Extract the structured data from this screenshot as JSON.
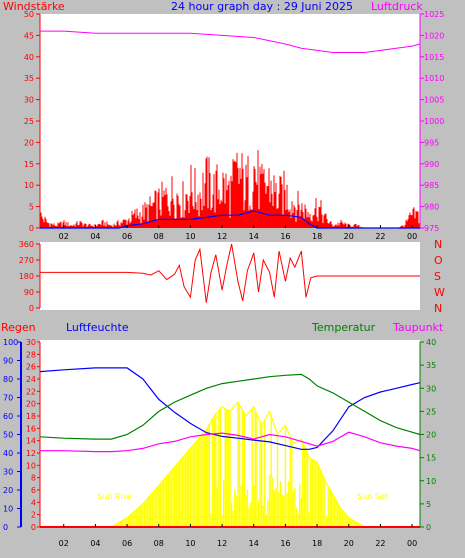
{
  "colors": {
    "background": "#c0c0c0",
    "plot_bg": "#ffffff",
    "grid": "#000000",
    "wind": "#ff0000",
    "wind_avg": "#0000ff",
    "pressure": "#ff00ff",
    "direction": "#ff0000",
    "humidity": "#0000ff",
    "temperature": "#008000",
    "dewpoint": "#ff00ff",
    "solar": "#ffff00",
    "rain": "#ff0000",
    "title": "#0000ff"
  },
  "chart_data": [
    {
      "type": "line",
      "title": "24 hour graph day : 29 Juni 2025",
      "left_axis_label": "Windstärke",
      "right_axis_label": "Luftdruck",
      "x_ticks": [
        "02",
        "04",
        "06",
        "08",
        "10",
        "12",
        "14",
        "16",
        "18",
        "20",
        "22",
        "00"
      ],
      "left_ticks": [
        "0",
        "5",
        "10",
        "15",
        "20",
        "25",
        "30",
        "35",
        "40",
        "45",
        "50"
      ],
      "right_ticks": [
        "975",
        "980",
        "985",
        "990",
        "995",
        "1000",
        "1005",
        "1010",
        "1015",
        "1020",
        "1025"
      ],
      "ylim_left": [
        0,
        50
      ],
      "ylim_right": [
        975,
        1025
      ],
      "xlim_hours": [
        0.5,
        24.5
      ],
      "series": [
        {
          "name": "Windstärke",
          "axis": "left",
          "style": "spikes",
          "x": [
            0.5,
            1,
            1.5,
            2,
            2.5,
            3,
            3.5,
            4,
            4.5,
            5,
            5.5,
            6,
            6.5,
            7,
            7.5,
            8,
            8.5,
            9,
            9.5,
            10,
            10.5,
            11,
            11.5,
            12,
            12.5,
            13,
            13.5,
            14,
            14.5,
            15,
            15.5,
            16,
            16.5,
            17,
            17.5,
            18,
            18.5,
            19,
            19.5,
            20,
            20.5,
            21,
            21.5,
            22,
            22.5,
            23,
            23.5,
            24
          ],
          "values": [
            5,
            2,
            1,
            2,
            1,
            2,
            1,
            1,
            2,
            1,
            2,
            3,
            5,
            6,
            8,
            10,
            12,
            14,
            11,
            16,
            13,
            18,
            15,
            17,
            14,
            22,
            16,
            24,
            15,
            18,
            12,
            14,
            10,
            8,
            6,
            9,
            4,
            1,
            2,
            1,
            1,
            0,
            0,
            0,
            0,
            0,
            1,
            5
          ]
        },
        {
          "name": "Windstärke avg",
          "axis": "left",
          "x": [
            0.5,
            2,
            4,
            5.5,
            6,
            7,
            8,
            9,
            10,
            11,
            12,
            13,
            14,
            15,
            16,
            17,
            17.5,
            18,
            20,
            22,
            24,
            24.5
          ],
          "values": [
            0,
            0,
            0,
            0,
            0.5,
            1,
            2,
            2,
            2,
            2.5,
            3,
            3,
            4,
            3,
            3,
            2.5,
            1,
            0,
            0,
            0,
            0,
            0
          ]
        },
        {
          "name": "Luftdruck",
          "axis": "right",
          "x": [
            0.5,
            2,
            4,
            6,
            8,
            10,
            12,
            14,
            16,
            17,
            18,
            19,
            20,
            21,
            22,
            23,
            24,
            24.5
          ],
          "values": [
            1021,
            1021,
            1020.5,
            1020.5,
            1020.5,
            1020.5,
            1020,
            1019.5,
            1018,
            1017,
            1016.5,
            1016,
            1016,
            1016,
            1016.5,
            1017,
            1017.5,
            1018
          ]
        }
      ]
    },
    {
      "type": "line",
      "left_ticks": [
        "0",
        "90",
        "180",
        "270",
        "360"
      ],
      "ylim": [
        0,
        360
      ],
      "direction_labels": [
        "N",
        "W",
        "S",
        "O",
        "N"
      ],
      "series": [
        {
          "name": "Windrichtung",
          "x": [
            0.5,
            2,
            4,
            6,
            7,
            7.5,
            8,
            8.5,
            9,
            9.3,
            9.6,
            10,
            10.3,
            10.6,
            11,
            11.3,
            11.6,
            12,
            12.3,
            12.6,
            13,
            13.3,
            13.6,
            14,
            14.3,
            14.6,
            15,
            15.3,
            15.6,
            16,
            16.3,
            16.6,
            17,
            17.3,
            17.6,
            18,
            18.5,
            20,
            22,
            24,
            24.5
          ],
          "values": [
            200,
            200,
            200,
            200,
            195,
            185,
            210,
            160,
            190,
            240,
            120,
            60,
            270,
            330,
            30,
            200,
            300,
            100,
            240,
            360,
            150,
            40,
            210,
            310,
            90,
            270,
            200,
            60,
            320,
            150,
            280,
            230,
            320,
            60,
            170,
            180,
            180,
            180,
            180,
            180,
            180
          ]
        }
      ]
    },
    {
      "type": "line",
      "left_axis_label": "Regen",
      "humidity_label": "Luftfeuchte",
      "temperature_label": "Temperatur",
      "dewpoint_label": "Taupunkt",
      "rain_ticks": [
        "0",
        "10",
        "20",
        "30",
        "40",
        "50",
        "60",
        "70",
        "80",
        "90",
        "100"
      ],
      "humidity_ticks": [
        "0",
        "2",
        "4",
        "6",
        "8",
        "10",
        "12",
        "14",
        "16",
        "18",
        "20",
        "22",
        "24",
        "26",
        "28",
        "30"
      ],
      "temp_ticks": [
        "0",
        "5",
        "10",
        "15",
        "20",
        "25",
        "30",
        "35",
        "40"
      ],
      "x_ticks": [
        "02",
        "04",
        "06",
        "08",
        "10",
        "12",
        "14",
        "16",
        "18",
        "20",
        "22",
        "00"
      ],
      "ylim_rain": [
        0,
        100
      ],
      "ylim_temp": [
        0,
        40
      ],
      "annotations": [
        {
          "text": "Sun Rise",
          "hour": 5.2
        },
        {
          "text": "Sun Set",
          "hour": 21.5
        }
      ],
      "series": [
        {
          "name": "Luftfeuchte",
          "axis": "rain",
          "x": [
            0.5,
            2,
            4,
            5,
            6,
            7,
            8,
            9,
            10,
            11,
            12,
            13,
            14,
            15,
            16,
            17,
            17.5,
            18,
            19,
            20,
            21,
            22,
            23,
            24,
            24.5
          ],
          "values": [
            84,
            85,
            86,
            86,
            86,
            80,
            69,
            62,
            56,
            51,
            49,
            48,
            47,
            46,
            44,
            42,
            42,
            43,
            52,
            65,
            70,
            73,
            75,
            77,
            78
          ]
        },
        {
          "name": "Temperatur",
          "axis": "temp",
          "x": [
            0.5,
            2,
            4,
            5,
            6,
            7,
            8,
            9,
            10,
            11,
            12,
            13,
            14,
            15,
            16,
            17,
            17.5,
            18,
            19,
            20,
            21,
            22,
            23,
            24,
            24.5
          ],
          "values": [
            19.5,
            19.2,
            19,
            19,
            20,
            22,
            25,
            27,
            28.5,
            30,
            31,
            31.5,
            32,
            32.5,
            32.8,
            33,
            32,
            30.5,
            29,
            27,
            25,
            23,
            21.5,
            20.5,
            20
          ]
        },
        {
          "name": "Taupunkt",
          "axis": "temp",
          "x": [
            0.5,
            2,
            4,
            5,
            6,
            7,
            8,
            9,
            10,
            11,
            12,
            13,
            14,
            15,
            16,
            17,
            18,
            19,
            20,
            21,
            22,
            23,
            24,
            24.5
          ],
          "values": [
            16.5,
            16.5,
            16.3,
            16.3,
            16.5,
            17,
            18,
            18.5,
            19.5,
            20,
            20.3,
            19.8,
            19,
            20,
            19.5,
            18.5,
            17.5,
            18.5,
            20.5,
            19.5,
            18.2,
            17.5,
            17,
            16.5
          ]
        },
        {
          "name": "Solar",
          "axis": "temp",
          "style": "spikes",
          "x": [
            5,
            6,
            7,
            8,
            9,
            10,
            10.5,
            11,
            11.5,
            12,
            12.5,
            13,
            13.5,
            14,
            14.5,
            15,
            15.5,
            16,
            16.5,
            17,
            17.5,
            18,
            18.5,
            19,
            19.5,
            20,
            20.5,
            21
          ],
          "values": [
            0,
            2,
            5,
            9,
            13,
            17,
            19,
            21,
            24,
            26,
            25,
            27,
            24,
            26,
            22,
            25,
            20,
            22,
            18,
            19,
            15,
            14,
            10,
            7,
            4,
            2,
            1,
            0
          ]
        },
        {
          "name": "Regen",
          "axis": "rain",
          "x": [
            0.5,
            24.5
          ],
          "values": [
            0,
            0
          ]
        }
      ]
    }
  ]
}
